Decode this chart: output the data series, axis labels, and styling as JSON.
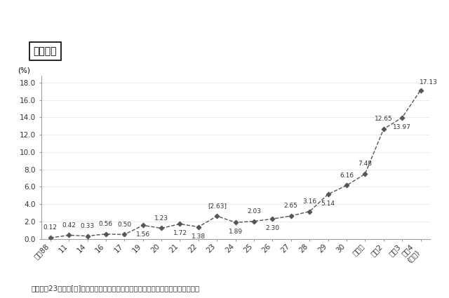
{
  "x_labels": [
    "平成88",
    "11",
    "14",
    "16",
    "17",
    "19",
    "20",
    "21",
    "22",
    "23",
    "24",
    "25",
    "26",
    "27",
    "28",
    "29",
    "30",
    "令和元",
    "令和2",
    "令和3",
    "令和4\n(年度)"
  ],
  "values": [
    0.12,
    0.42,
    0.33,
    0.56,
    0.5,
    1.56,
    1.23,
    1.72,
    1.38,
    2.63,
    1.89,
    2.03,
    2.3,
    2.65,
    3.16,
    5.14,
    6.16,
    7.48,
    12.65,
    13.97,
    17.13
  ],
  "data_labels": [
    "0.12",
    "0.42",
    "0.33",
    "0.56",
    "0.50",
    "1.56",
    "1.23",
    "1.72",
    "1.38",
    "[2.63]",
    "1.89",
    "2.03",
    "2.30",
    "2.65",
    "3.16",
    "5.14",
    "6.16",
    "7.48",
    "12.65",
    "13.97",
    "17.13"
  ],
  "label_va": [
    "bottom",
    "bottom",
    "bottom",
    "bottom",
    "bottom",
    "top",
    "bottom",
    "top",
    "bottom",
    "bottom",
    "bottom",
    "bottom",
    "bottom",
    "bottom",
    "bottom",
    "bottom",
    "bottom",
    "bottom",
    "bottom",
    "bottom",
    "bottom"
  ],
  "label_dy": [
    7,
    7,
    7,
    7,
    7,
    -13,
    7,
    -13,
    -13,
    7,
    -13,
    7,
    -13,
    7,
    7,
    -13,
    7,
    7,
    7,
    -13,
    5
  ],
  "label_dx": [
    0,
    0,
    0,
    0,
    0,
    0,
    0,
    0,
    0,
    0,
    0,
    0,
    0,
    0,
    0,
    0,
    0,
    0,
    0,
    0,
    8
  ],
  "ylabel": "(%)",
  "ylim": [
    0,
    18.8
  ],
  "yticks": [
    0.0,
    2.0,
    4.0,
    6.0,
    8.0,
    10.0,
    12.0,
    14.0,
    16.0,
    18.0
  ],
  "title_box": "（男性）",
  "note": "注：平成23年度の[　]内の割合は、岩手県、宮城県及び福島県を除く全国の結果。",
  "line_color": "#555555",
  "marker_color": "#555555",
  "background_color": "#ffffff",
  "label_fontsize": 6.5,
  "tick_fontsize": 7.5,
  "note_fontsize": 7.5
}
